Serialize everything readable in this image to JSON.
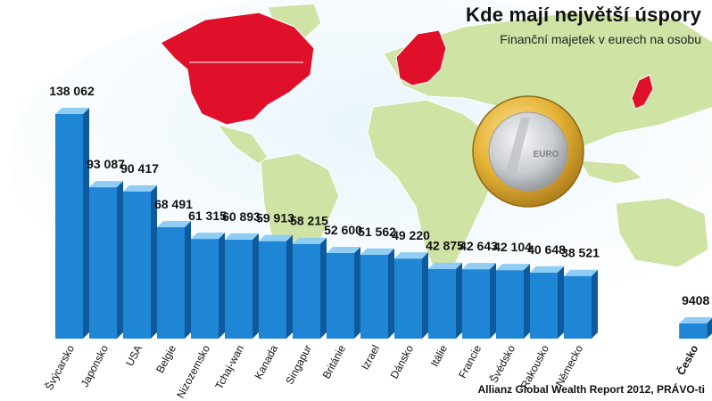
{
  "title": "Kde mají největší úspory",
  "subtitle": "Finanční majetek v eurech na osobu",
  "source": "Allianz Global Wealth Report 2012, PRÁVO-ti",
  "colors": {
    "bar_front": "#1f86d6",
    "bar_top": "#8fcdf4",
    "bar_side": "#0f5a9c",
    "map_land": "#cfe3a4",
    "map_highlight": "#e0102a",
    "ocean_glow": "#d6ecf8",
    "coin_gold": "#e8b83a",
    "coin_silver": "#d7d9dc"
  },
  "icons": {
    "coin": "euro-coin-icon",
    "map": "world-map-illustration"
  },
  "coin_text": "EURO",
  "chart_data": {
    "type": "bar",
    "categories": [
      "Švýcarsko",
      "Japonsko",
      "USA",
      "Belgie",
      "Nizozemsko",
      "Tchaj-wan",
      "Kanada",
      "Singapur",
      "Británie",
      "Izrael",
      "Dánsko",
      "Itálie",
      "Francie",
      "Švédsko",
      "Rakousko",
      "Německo",
      "Česko"
    ],
    "values": [
      138062,
      93087,
      90417,
      68491,
      61315,
      60893,
      59913,
      58215,
      52600,
      51562,
      49220,
      42875,
      42643,
      42104,
      40648,
      38521,
      9408
    ],
    "value_labels": [
      "138 062",
      "93 087",
      "90 417",
      "68 491",
      "61 315",
      "60 893",
      "59 913",
      "58 215",
      "52 600",
      "51 562",
      "49 220",
      "42 875",
      "42 643",
      "42 104",
      "40 648",
      "38 521",
      "9408"
    ],
    "highlight_category": "Česko",
    "title": "Kde mají největší úspory",
    "ylabel": "Finanční majetek v eurech na osobu",
    "ylim": [
      0,
      138062
    ],
    "grid": false,
    "legend": "none"
  }
}
